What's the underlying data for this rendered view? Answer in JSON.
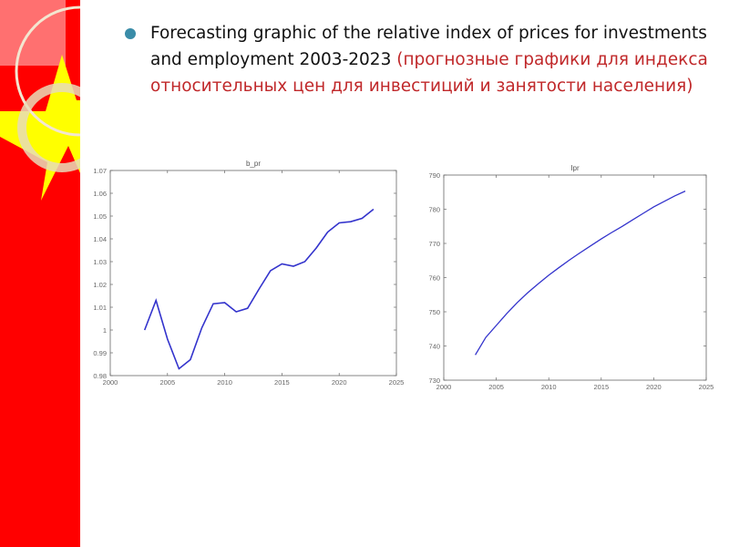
{
  "slide": {
    "heading_en": "Forecasting graphic of the relative index of prices for investments and employment 2003-2023",
    "heading_ru": "(прогнозные графики для индекса относительных цен для инвестиций и занятости населения)"
  },
  "colors": {
    "strip": "#ff0000",
    "star": "#ffff00",
    "line": "#3333cc",
    "bullet": "#3a8ca8",
    "ru_text": "#c0282a"
  },
  "chart_data": [
    {
      "type": "line",
      "title": "b_pr",
      "xlabel": "",
      "ylabel": "",
      "xlim": [
        2000,
        2025
      ],
      "ylim": [
        0.98,
        1.07
      ],
      "xticks": [
        2000,
        2005,
        2010,
        2015,
        2020,
        2025
      ],
      "yticks": [
        0.98,
        0.99,
        1,
        1.01,
        1.02,
        1.03,
        1.04,
        1.05,
        1.06,
        1.07
      ],
      "ytick_labels": [
        "0.98",
        "0.99",
        "1",
        "1.01",
        "1.02",
        "1.03",
        "1.04",
        "1.05",
        "1.06",
        "1.07"
      ],
      "grid": false,
      "x": [
        2003,
        2004,
        2005,
        2006,
        2007,
        2008,
        2009,
        2010,
        2011,
        2012,
        2013,
        2014,
        2015,
        2016,
        2017,
        2018,
        2019,
        2020,
        2021,
        2022,
        2023
      ],
      "values": [
        1.0,
        1.013,
        0.996,
        0.983,
        0.987,
        1.001,
        1.0115,
        1.012,
        1.008,
        1.0095,
        1.018,
        1.026,
        1.029,
        1.028,
        1.03,
        1.036,
        1.043,
        1.047,
        1.0475,
        1.049,
        1.053
      ]
    },
    {
      "type": "line",
      "title": "Ipr",
      "xlabel": "",
      "ylabel": "",
      "xlim": [
        2000,
        2025
      ],
      "ylim": [
        730,
        790
      ],
      "xticks": [
        2000,
        2005,
        2010,
        2015,
        2020,
        2025
      ],
      "yticks": [
        730,
        740,
        750,
        760,
        770,
        780,
        790
      ],
      "ytick_labels": [
        "730",
        "740",
        "750",
        "760",
        "770",
        "780",
        "790"
      ],
      "grid": false,
      "x": [
        2003,
        2004,
        2005,
        2006,
        2007,
        2008,
        2009,
        2010,
        2011,
        2012,
        2013,
        2014,
        2015,
        2016,
        2017,
        2018,
        2019,
        2020,
        2021,
        2022,
        2023
      ],
      "values": [
        737.4,
        742.5,
        746.0,
        749.5,
        752.7,
        755.6,
        758.2,
        760.7,
        763.0,
        765.2,
        767.3,
        769.3,
        771.3,
        773.2,
        775.0,
        776.9,
        778.8,
        780.7,
        782.3,
        783.9,
        785.3
      ]
    }
  ]
}
